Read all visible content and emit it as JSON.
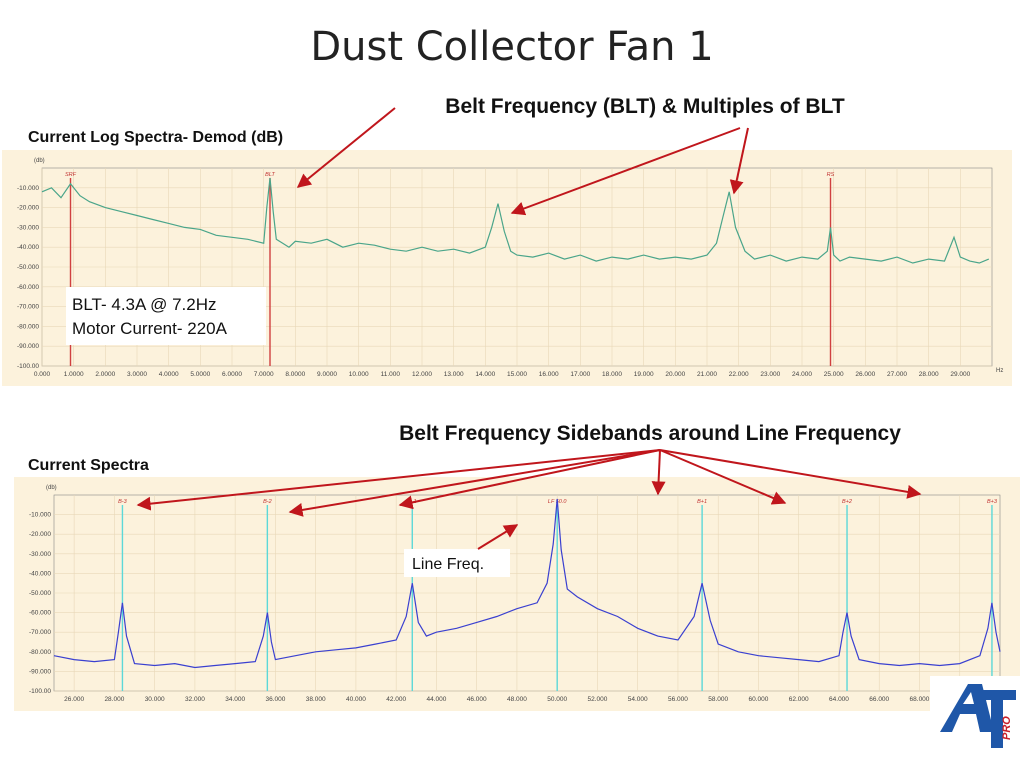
{
  "slide": {
    "title": "Dust Collector Fan 1",
    "annotations": {
      "top_callout": "Belt Frequency (BLT) & Multiples of BLT",
      "bottom_callout": "Belt Frequency Sidebands around Line Frequency",
      "info_line1": "BLT- 4.3A @ 7.2Hz",
      "info_line2": "Motor Current- 220A",
      "line_freq_label": "Line Freq."
    },
    "logo_text": "AT PRO",
    "colors": {
      "plot_bg": "#fcf2dc",
      "top_trace": "#4aa58a",
      "bottom_trace": "#3a40d0",
      "marker_red": "#d04040",
      "marker_cyan": "#5cd8d8",
      "arrow": "#c0161c",
      "logo_blue": "#1f57a8",
      "logo_red": "#c8202a"
    }
  },
  "chart_data": [
    {
      "type": "line",
      "title": "Current Log Spectra- Demod (dB)",
      "ylabel": "(db)",
      "xlabel": "Hz",
      "xlim": [
        0,
        30
      ],
      "ylim": [
        -100,
        0
      ],
      "yticks": [
        "-10.000",
        "-20.000",
        "-30.000",
        "-40.000",
        "-50.000",
        "-60.000",
        "-70.000",
        "-80.000",
        "-90.000",
        "-100.00"
      ],
      "xticks": [
        "0.000",
        "1.0000",
        "2.0000",
        "3.0000",
        "4.0000",
        "5.0000",
        "6.0000",
        "7.0000",
        "8.0000",
        "9.0000",
        "10.000",
        "11.000",
        "12.000",
        "13.000",
        "14.000",
        "15.000",
        "16.000",
        "17.000",
        "18.000",
        "19.000",
        "20.000",
        "21.000",
        "22.000",
        "23.000",
        "24.000",
        "25.000",
        "26.000",
        "27.000",
        "28.000",
        "29.000"
      ],
      "markers": [
        {
          "label": "SRF",
          "x": 0.9
        },
        {
          "label": "BLT",
          "x": 7.2
        },
        {
          "label": "RS",
          "x": 24.9
        }
      ],
      "series": [
        {
          "x": [
            0,
            0.3,
            0.6,
            0.9,
            1.2,
            1.5,
            2,
            2.5,
            3,
            3.5,
            4,
            4.5,
            5,
            5.5,
            6,
            6.5,
            7,
            7.1,
            7.2,
            7.3,
            7.4,
            7.6,
            7.8,
            8,
            8.5,
            9,
            9.5,
            10,
            10.5,
            11,
            11.5,
            12,
            12.5,
            13,
            13.5,
            14,
            14.2,
            14.4,
            14.6,
            14.8,
            15,
            15.5,
            16,
            16.5,
            17,
            17.5,
            18,
            18.5,
            19,
            19.5,
            20,
            20.5,
            21,
            21.3,
            21.5,
            21.7,
            21.9,
            22.2,
            22.5,
            23,
            23.5,
            24,
            24.5,
            24.8,
            24.9,
            25,
            25.2,
            25.5,
            26,
            26.5,
            27,
            27.5,
            28,
            28.5,
            28.8,
            29,
            29.3,
            29.6,
            29.9
          ],
          "y": [
            -12,
            -10,
            -15,
            -8,
            -14,
            -17,
            -20,
            -22,
            -24,
            -26,
            -28,
            -30,
            -31,
            -34,
            -35,
            -36,
            -38,
            -20,
            -5,
            -22,
            -36,
            -38,
            -40,
            -37,
            -38,
            -36,
            -40,
            -38,
            -39,
            -41,
            -42,
            -40,
            -42,
            -41,
            -43,
            -40,
            -30,
            -18,
            -32,
            -42,
            -44,
            -45,
            -43,
            -46,
            -44,
            -47,
            -45,
            -46,
            -44,
            -46,
            -45,
            -46,
            -44,
            -38,
            -25,
            -12,
            -30,
            -42,
            -46,
            -44,
            -47,
            -45,
            -46,
            -42,
            -30,
            -44,
            -47,
            -45,
            -46,
            -47,
            -45,
            -48,
            -46,
            -47,
            -35,
            -45,
            -47,
            -48,
            -46
          ]
        }
      ]
    },
    {
      "type": "line",
      "title": "Current Spectra",
      "ylabel": "(db)",
      "xlim": [
        25,
        72
      ],
      "ylim": [
        -100,
        0
      ],
      "yticks": [
        "-10.000",
        "-20.000",
        "-30.000",
        "-40.000",
        "-50.000",
        "-60.000",
        "-70.000",
        "-80.000",
        "-90.000",
        "-100.00"
      ],
      "xticks": [
        "26.000",
        "28.000",
        "30.000",
        "32.000",
        "34.000",
        "36.000",
        "38.000",
        "40.000",
        "42.000",
        "44.000",
        "46.000",
        "48.000",
        "50.000",
        "52.000",
        "54.000",
        "56.000",
        "58.000",
        "60.000",
        "62.000",
        "64.000",
        "66.000",
        "68.000",
        "70.000"
      ],
      "markers": [
        {
          "label": "B-3",
          "x": 28.4
        },
        {
          "label": "B-2",
          "x": 35.6
        },
        {
          "label": "B-1",
          "x": 42.8
        },
        {
          "label": "LF 50.0",
          "x": 50.0
        },
        {
          "label": "B+1",
          "x": 57.2
        },
        {
          "label": "B+2",
          "x": 64.4
        },
        {
          "label": "B+3",
          "x": 71.6
        }
      ],
      "series": [
        {
          "x": [
            25,
            26,
            27,
            28,
            28.2,
            28.4,
            28.6,
            29,
            30,
            31,
            32,
            33,
            34,
            35,
            35.4,
            35.6,
            35.8,
            36,
            37,
            38,
            39,
            40,
            41,
            42,
            42.5,
            42.8,
            43.1,
            43.5,
            44,
            45,
            46,
            47,
            48,
            49,
            49.5,
            49.8,
            50,
            50.2,
            50.5,
            51,
            52,
            53,
            54,
            55,
            56,
            56.8,
            57.2,
            57.6,
            58,
            59,
            60,
            61,
            62,
            63,
            64,
            64.2,
            64.4,
            64.6,
            65,
            66,
            67,
            68,
            69,
            70,
            71,
            71.4,
            71.6,
            71.8,
            72
          ],
          "y": [
            -82,
            -84,
            -85,
            -84,
            -70,
            -55,
            -72,
            -86,
            -87,
            -86,
            -88,
            -87,
            -86,
            -85,
            -72,
            -60,
            -75,
            -84,
            -82,
            -80,
            -79,
            -78,
            -76,
            -74,
            -62,
            -45,
            -65,
            -72,
            -70,
            -68,
            -65,
            -62,
            -58,
            -55,
            -45,
            -25,
            -2,
            -28,
            -48,
            -52,
            -58,
            -62,
            -68,
            -72,
            -74,
            -62,
            -45,
            -64,
            -76,
            -80,
            -82,
            -83,
            -84,
            -85,
            -82,
            -70,
            -60,
            -72,
            -84,
            -86,
            -87,
            -86,
            -87,
            -86,
            -82,
            -68,
            -55,
            -70,
            -80
          ]
        }
      ]
    }
  ]
}
